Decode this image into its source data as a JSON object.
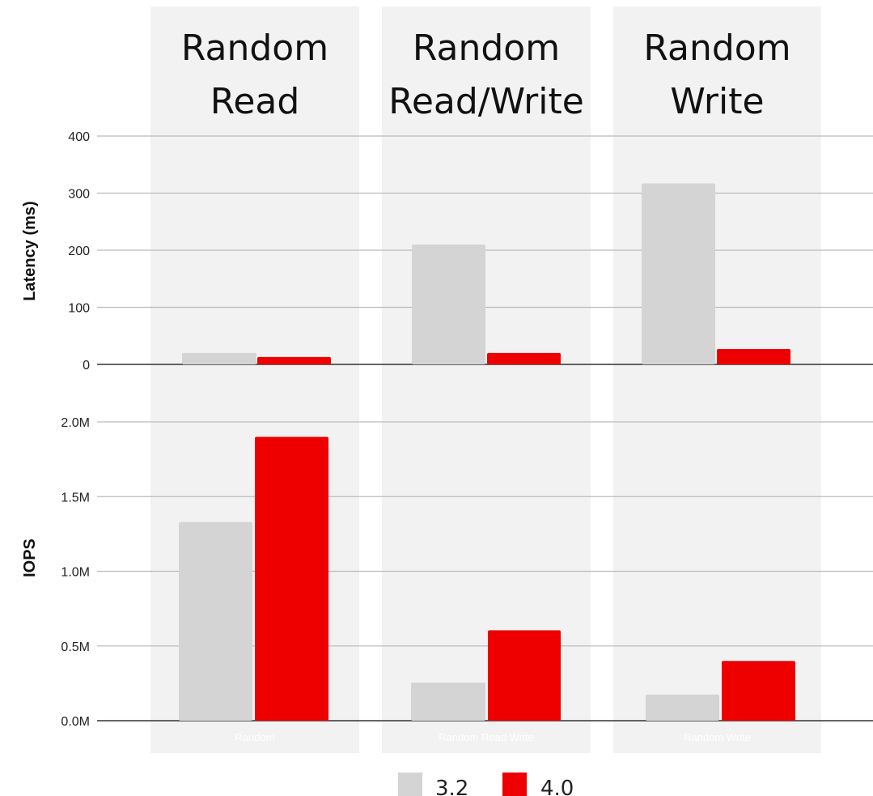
{
  "colors": {
    "s32": "#d4d4d4",
    "s40": "#ee0000",
    "panel": "#f2f2f2",
    "grid": "#bbbbbb",
    "axis": "#333333"
  },
  "chart_data": [
    {
      "type": "bar",
      "ylabel": "Latency (ms)",
      "categories": [
        "Random",
        "Random Read Write",
        "Random Write"
      ],
      "headers": [
        [
          "Random",
          "Read"
        ],
        [
          "Random",
          "Read/Write"
        ],
        [
          "Random",
          "Write"
        ]
      ],
      "ylim": [
        0,
        400
      ],
      "yticks": [
        "0",
        "100",
        "200",
        "300",
        "400"
      ],
      "series": [
        {
          "name": "3.2",
          "values": [
            20,
            210,
            317
          ]
        },
        {
          "name": "4.0",
          "values": [
            13,
            20,
            27
          ]
        }
      ]
    },
    {
      "type": "bar",
      "ylabel": "IOPS",
      "categories": [
        "Random",
        "Random Read Write",
        "Random Write"
      ],
      "ylim": [
        0,
        2000000
      ],
      "yticks": [
        "0.0M",
        "0.5M",
        "1.0M",
        "1.5M",
        "2.0M"
      ],
      "series": [
        {
          "name": "3.2",
          "values": [
            1330000,
            255000,
            175000
          ]
        },
        {
          "name": "4.0",
          "values": [
            1900000,
            605000,
            400000
          ]
        }
      ]
    }
  ],
  "legend": [
    {
      "label": "3.2"
    },
    {
      "label": "4.0"
    }
  ]
}
